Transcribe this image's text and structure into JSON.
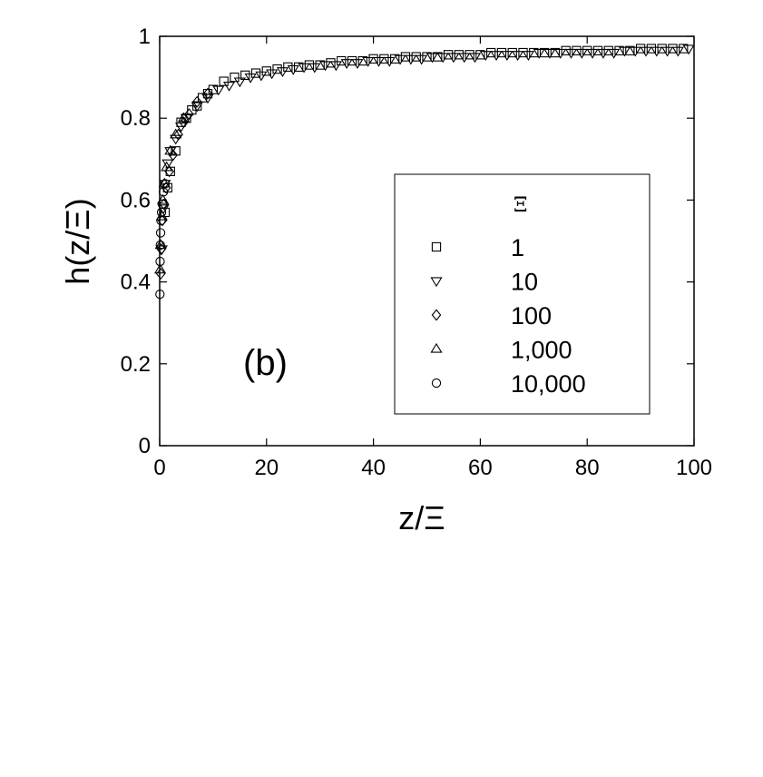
{
  "chart_data": {
    "type": "scatter",
    "xlabel": "z/Ξ",
    "ylabel": "h(z/Ξ)",
    "xlim": [
      0,
      100
    ],
    "ylim": [
      0,
      1
    ],
    "x_ticks": [
      "0",
      "20",
      "40",
      "60",
      "80",
      "100"
    ],
    "y_ticks": [
      "0",
      "0.2",
      "0.4",
      "0.6",
      "0.8",
      "1"
    ],
    "annotation": "(b)",
    "grid": false,
    "legend": {
      "title": "Ξ",
      "position": "right"
    },
    "series": [
      {
        "name": "1",
        "marker": "square",
        "x": [
          1,
          1.5,
          2,
          3,
          4,
          5,
          6,
          7,
          8,
          9,
          10,
          12,
          14,
          16,
          18,
          20,
          22,
          24,
          26,
          28,
          30,
          32,
          34,
          36,
          38,
          40,
          42,
          44,
          46,
          48,
          50,
          52,
          54,
          56,
          58,
          60,
          62,
          64,
          66,
          68,
          70,
          72,
          74,
          76,
          78,
          80,
          82,
          84,
          86,
          88,
          90,
          92,
          94,
          96,
          98
        ],
        "y": [
          0.57,
          0.63,
          0.67,
          0.72,
          0.79,
          0.8,
          0.82,
          0.83,
          0.85,
          0.86,
          0.87,
          0.89,
          0.9,
          0.905,
          0.91,
          0.915,
          0.92,
          0.925,
          0.925,
          0.93,
          0.93,
          0.935,
          0.94,
          0.94,
          0.94,
          0.945,
          0.945,
          0.945,
          0.95,
          0.95,
          0.95,
          0.95,
          0.955,
          0.955,
          0.955,
          0.955,
          0.96,
          0.96,
          0.96,
          0.96,
          0.96,
          0.96,
          0.96,
          0.965,
          0.965,
          0.965,
          0.965,
          0.965,
          0.965,
          0.965,
          0.97,
          0.97,
          0.97,
          0.97,
          0.97
        ]
      },
      {
        "name": "10",
        "marker": "triangle-down",
        "x": [
          0.4,
          0.7,
          1,
          1.5,
          2,
          3,
          4,
          5,
          7,
          9,
          11,
          13,
          15,
          17,
          19,
          21,
          23,
          25,
          27,
          29,
          31,
          33,
          35,
          37,
          39,
          41,
          43,
          45,
          47,
          49,
          51,
          53,
          55,
          57,
          59,
          61,
          63,
          65,
          67,
          69,
          71,
          73,
          75,
          77,
          79,
          81,
          83,
          85,
          87,
          89,
          91,
          93,
          95,
          97,
          99
        ],
        "y": [
          0.48,
          0.58,
          0.64,
          0.69,
          0.72,
          0.75,
          0.78,
          0.8,
          0.83,
          0.85,
          0.87,
          0.88,
          0.89,
          0.9,
          0.905,
          0.91,
          0.915,
          0.92,
          0.925,
          0.925,
          0.93,
          0.93,
          0.935,
          0.935,
          0.94,
          0.94,
          0.94,
          0.945,
          0.945,
          0.945,
          0.95,
          0.95,
          0.95,
          0.95,
          0.95,
          0.955,
          0.955,
          0.955,
          0.955,
          0.955,
          0.96,
          0.96,
          0.96,
          0.96,
          0.96,
          0.96,
          0.96,
          0.96,
          0.965,
          0.965,
          0.965,
          0.965,
          0.965,
          0.965,
          0.97
        ]
      },
      {
        "name": "100",
        "marker": "diamond",
        "x": [
          0.2,
          0.3,
          0.5,
          0.8,
          1.2,
          1.8,
          2.5,
          3.5,
          4.5,
          5.5,
          7,
          9
        ],
        "y": [
          0.42,
          0.48,
          0.55,
          0.59,
          0.63,
          0.67,
          0.71,
          0.76,
          0.79,
          0.81,
          0.84,
          0.86
        ]
      },
      {
        "name": "1,000",
        "marker": "triangle-up",
        "x": [
          0.1,
          0.2,
          0.4,
          0.6,
          0.9,
          1.3,
          2,
          3,
          4.5
        ],
        "y": [
          0.43,
          0.49,
          0.56,
          0.6,
          0.64,
          0.68,
          0.72,
          0.76,
          0.8
        ]
      },
      {
        "name": "10,000",
        "marker": "circle",
        "x": [
          0.05,
          0.08,
          0.12,
          0.18,
          0.25,
          0.35,
          0.5,
          0.7,
          1
        ],
        "y": [
          0.37,
          0.45,
          0.49,
          0.52,
          0.55,
          0.57,
          0.59,
          0.62,
          0.64
        ]
      }
    ]
  }
}
